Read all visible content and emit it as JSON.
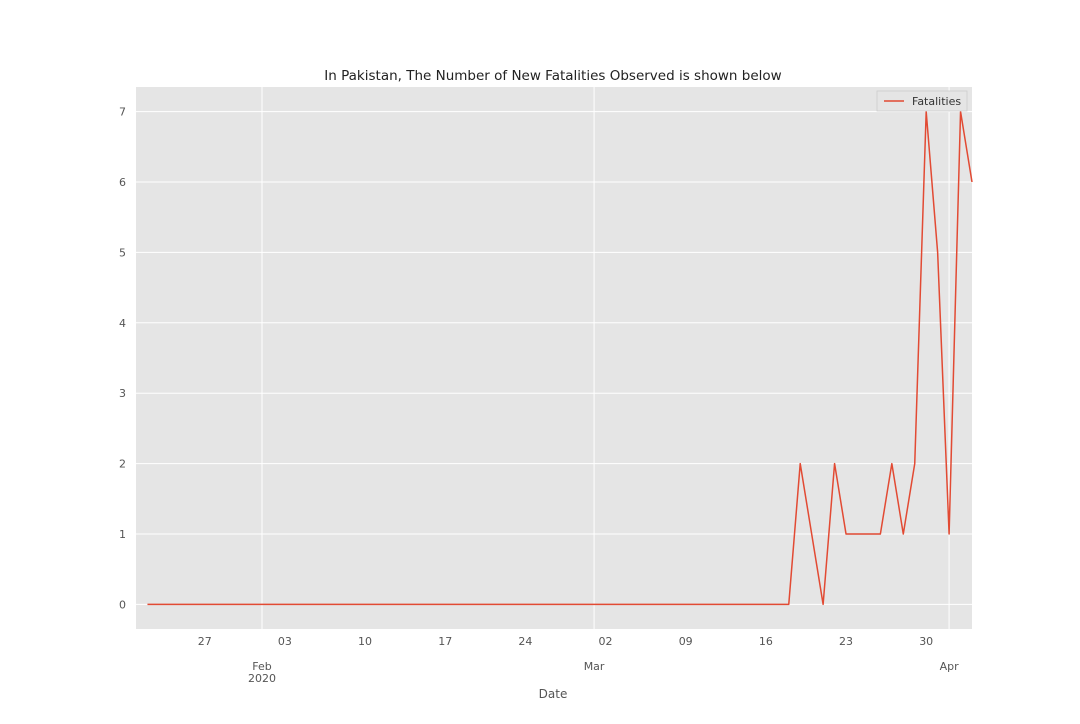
{
  "chart_data": {
    "type": "line",
    "title": "In Pakistan, The Number of New Fatalities Observed is shown below",
    "xlabel": "Date",
    "ylabel": "",
    "x_start": "2020-01-22",
    "x_end": "2020-04-03",
    "xlim": [
      "2020-01-21",
      "2020-04-03"
    ],
    "ylim": [
      -0.35,
      7.35
    ],
    "yticks": [
      0,
      1,
      2,
      3,
      4,
      5,
      6,
      7
    ],
    "minor_xticks": [
      {
        "date": "2020-01-27",
        "label": "27"
      },
      {
        "date": "2020-02-03",
        "label": "03"
      },
      {
        "date": "2020-02-10",
        "label": "10"
      },
      {
        "date": "2020-02-17",
        "label": "17"
      },
      {
        "date": "2020-02-24",
        "label": "24"
      },
      {
        "date": "2020-03-02",
        "label": "02"
      },
      {
        "date": "2020-03-09",
        "label": "09"
      },
      {
        "date": "2020-03-16",
        "label": "16"
      },
      {
        "date": "2020-03-23",
        "label": "23"
      },
      {
        "date": "2020-03-30",
        "label": "30"
      }
    ],
    "major_xticks": [
      {
        "date": "2020-02-01",
        "label": "Feb\n2020"
      },
      {
        "date": "2020-03-01",
        "label": "Mar"
      },
      {
        "date": "2020-04-01",
        "label": "Apr"
      }
    ],
    "grid": true,
    "legend_position": "top-right",
    "colors": {
      "background": "#e5e5e5",
      "grid": "#ffffff",
      "line": "#e24a33",
      "text": "#555555"
    },
    "series": [
      {
        "name": "Fatalities",
        "values": [
          0,
          0,
          0,
          0,
          0,
          0,
          0,
          0,
          0,
          0,
          0,
          0,
          0,
          0,
          0,
          0,
          0,
          0,
          0,
          0,
          0,
          0,
          0,
          0,
          0,
          0,
          0,
          0,
          0,
          0,
          0,
          0,
          0,
          0,
          0,
          0,
          0,
          0,
          0,
          0,
          0,
          0,
          0,
          0,
          0,
          0,
          0,
          0,
          0,
          0,
          0,
          0,
          0,
          0,
          0,
          0,
          0,
          2,
          1,
          0,
          2,
          1,
          1,
          1,
          1,
          2,
          1,
          2,
          7,
          5,
          1,
          7,
          6
        ]
      }
    ]
  }
}
